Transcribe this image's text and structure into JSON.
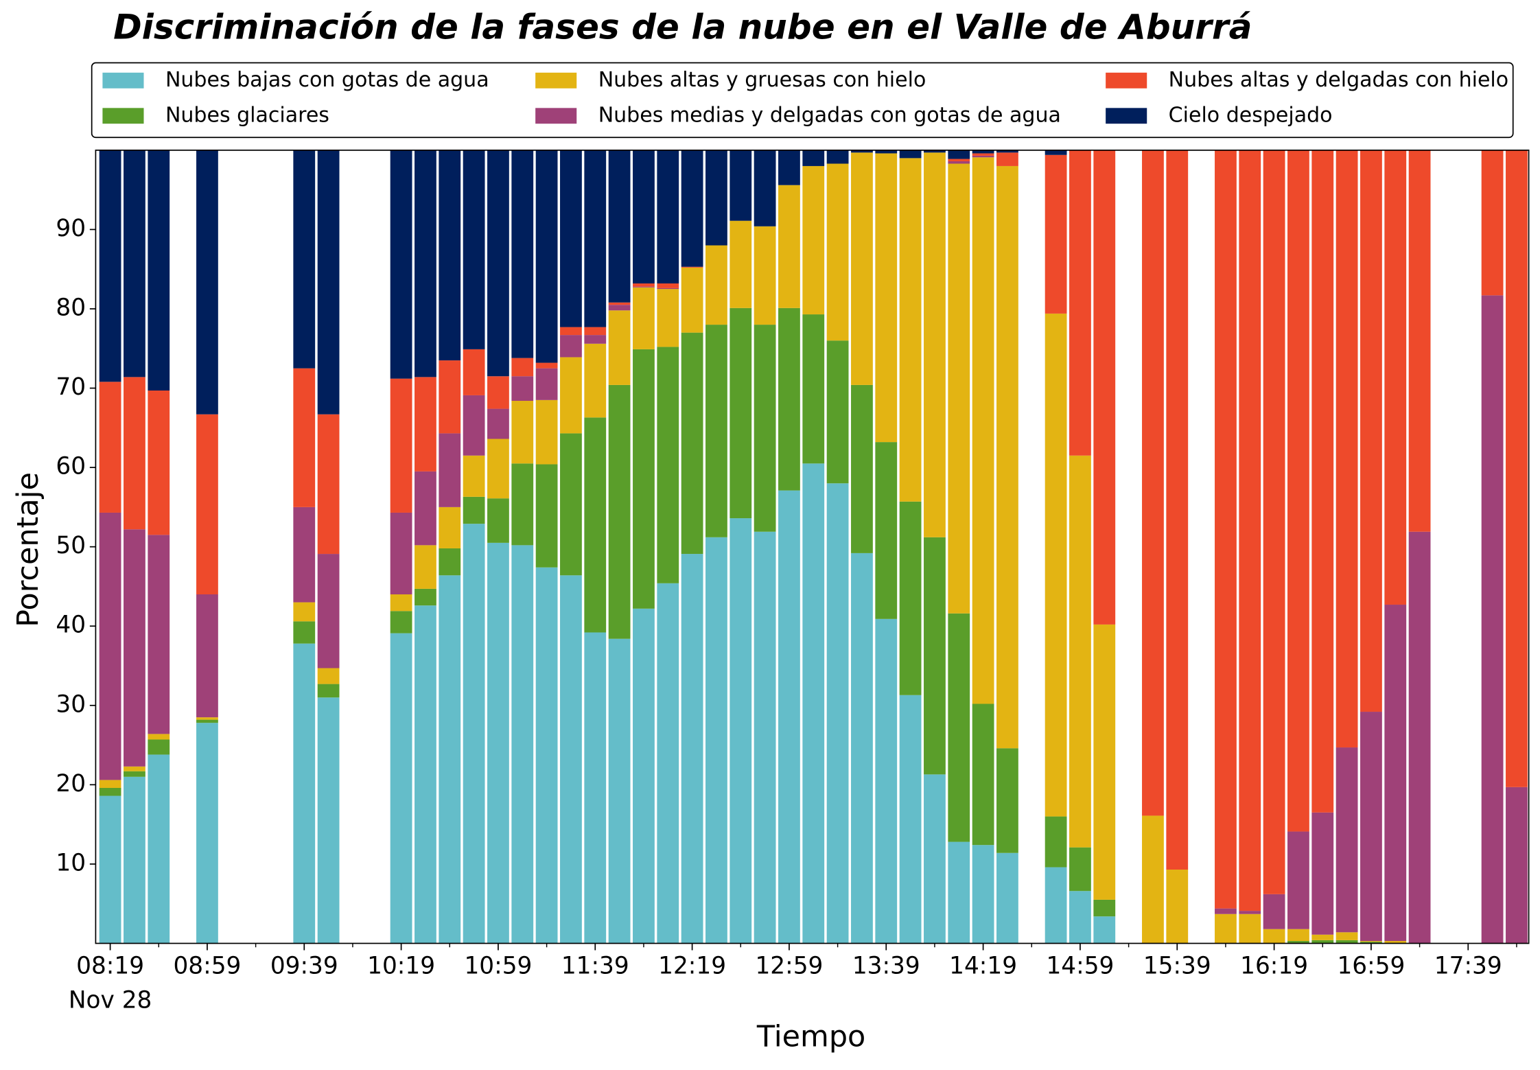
{
  "chart_data": {
    "type": "stacked_bar",
    "title": "Discriminación de la fases de la nube en el Valle de Aburrá",
    "xlabel": "Tiempo",
    "ylabel": "Porcentaje",
    "x": [
      "08:19",
      "08:29",
      "08:39",
      "08:59",
      "09:39",
      "09:49",
      "10:19",
      "10:29",
      "10:39",
      "10:49",
      "10:59",
      "11:09",
      "11:19",
      "11:29",
      "11:39",
      "11:49",
      "11:59",
      "12:09",
      "12:19",
      "12:29",
      "12:39",
      "12:49",
      "12:59",
      "13:09",
      "13:19",
      "13:29",
      "13:39",
      "13:49",
      "13:59",
      "14:09",
      "14:19",
      "14:29",
      "14:49",
      "14:59",
      "15:09",
      "15:29",
      "15:39",
      "15:59",
      "16:09",
      "16:19",
      "16:29",
      "16:39",
      "16:49",
      "16:59",
      "17:09",
      "17:19",
      "17:49",
      "17:59"
    ],
    "xlim": [
      "08:13",
      "18:04"
    ],
    "xticks": [
      "08:19",
      "08:59",
      "09:39",
      "10:19",
      "10:59",
      "11:39",
      "12:19",
      "12:59",
      "13:39",
      "14:19",
      "14:59",
      "15:39",
      "16:19",
      "16:59",
      "17:39"
    ],
    "x_date_label": "Nov 28",
    "ylim": [
      0,
      100
    ],
    "yticks": [
      10,
      20,
      30,
      40,
      50,
      60,
      70,
      80,
      90
    ],
    "grid": false,
    "legend": "top",
    "series": [
      {
        "name": "Nubes bajas con gotas de agua",
        "color": "#64bdc9",
        "values": [
          18.6,
          21.0,
          23.8,
          27.8,
          37.8,
          31.0,
          39.1,
          42.6,
          46.4,
          52.9,
          50.5,
          50.2,
          47.4,
          46.4,
          39.2,
          38.4,
          42.2,
          45.4,
          49.1,
          51.2,
          53.6,
          51.9,
          57.1,
          60.5,
          58.0,
          49.2,
          40.9,
          31.3,
          21.3,
          12.8,
          12.4,
          11.4,
          9.6,
          6.6,
          3.4,
          0,
          0,
          0,
          0,
          0,
          0,
          0,
          0,
          0,
          0,
          0,
          0,
          0
        ]
      },
      {
        "name": "Nubes glaciares",
        "color": "#5a9e2a",
        "values": [
          1.0,
          0.7,
          1.9,
          0.4,
          2.8,
          1.7,
          2.8,
          2.1,
          3.4,
          3.4,
          5.6,
          10.3,
          13.0,
          17.9,
          27.1,
          32.0,
          32.7,
          29.8,
          27.9,
          26.8,
          26.5,
          26.1,
          23.0,
          18.8,
          18.0,
          21.2,
          22.3,
          24.4,
          29.9,
          28.8,
          17.8,
          13.2,
          6.4,
          5.5,
          2.1,
          0,
          0,
          0,
          0,
          0,
          0.3,
          0.4,
          0.4,
          0.2,
          0,
          0,
          0,
          0
        ]
      },
      {
        "name": "Nubes altas y gruesas con hielo",
        "color": "#e3b413",
        "values": [
          1.0,
          0.6,
          0.7,
          0.3,
          2.4,
          2.0,
          2.1,
          5.5,
          5.2,
          5.2,
          7.5,
          7.9,
          8.1,
          9.6,
          9.3,
          9.4,
          7.8,
          7.3,
          8.2,
          10.0,
          11.0,
          12.4,
          15.5,
          18.7,
          22.3,
          29.3,
          36.4,
          43.3,
          48.5,
          56.7,
          68.9,
          73.4,
          63.4,
          49.4,
          34.7,
          16.1,
          9.3,
          3.7,
          3.7,
          1.8,
          1.5,
          0.7,
          1.0,
          0.1,
          0.3,
          0,
          0,
          0
        ]
      },
      {
        "name": "Nubes medias y delgadas con gotas de agua",
        "color": "#9f4178",
        "values": [
          33.7,
          29.9,
          25.1,
          15.5,
          12.0,
          14.4,
          10.3,
          9.3,
          9.3,
          7.6,
          3.8,
          3.1,
          4.0,
          2.8,
          1.1,
          0.7,
          0.1,
          0.1,
          0,
          0,
          0,
          0,
          0,
          0,
          0,
          0,
          0,
          0,
          0,
          0.3,
          0.2,
          0,
          0,
          0,
          0,
          0,
          0,
          0.7,
          0.4,
          4.4,
          12.3,
          15.4,
          23.3,
          28.9,
          42.4,
          51.9,
          81.7,
          19.7
        ]
      },
      {
        "name": "Nubes altas y delgadas con hielo",
        "color": "#ee4a2b",
        "values": [
          16.5,
          19.2,
          18.2,
          22.7,
          17.5,
          17.6,
          16.9,
          11.9,
          9.2,
          5.8,
          4.1,
          2.3,
          0.7,
          1.0,
          1.0,
          0.3,
          0.4,
          0.6,
          0.1,
          0,
          0,
          0,
          0,
          0,
          0,
          0,
          0,
          0,
          0,
          0.3,
          0.3,
          1.7,
          20.0,
          38.5,
          59.8,
          83.9,
          90.7,
          95.6,
          95.9,
          93.8,
          85.9,
          83.5,
          75.3,
          70.8,
          57.3,
          48.1,
          18.3,
          80.3
        ]
      },
      {
        "name": "Cielo despejado",
        "color": "#001f5c",
        "values": [
          29.2,
          28.6,
          30.3,
          33.3,
          27.5,
          33.3,
          28.8,
          28.6,
          26.5,
          25.1,
          28.5,
          26.2,
          26.8,
          22.3,
          22.3,
          19.2,
          16.8,
          16.8,
          14.7,
          12.0,
          8.9,
          9.6,
          4.4,
          2.0,
          1.7,
          0.3,
          0.4,
          1.0,
          0.3,
          1.1,
          0.4,
          0.3,
          0.6,
          0,
          0,
          0,
          0,
          0,
          0,
          0,
          0,
          0,
          0,
          0,
          0,
          0,
          0,
          0
        ]
      }
    ]
  }
}
